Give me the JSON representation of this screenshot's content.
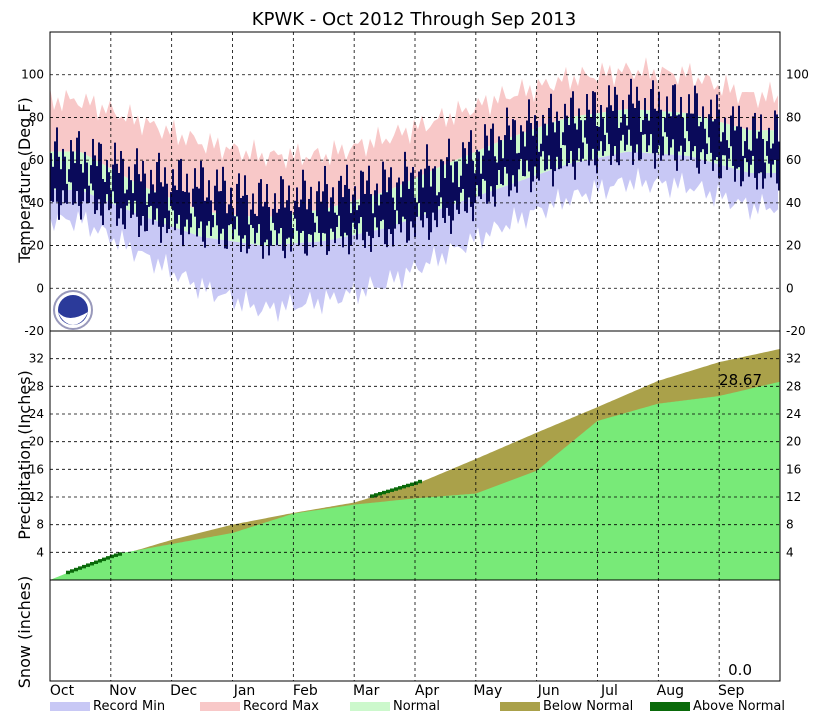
{
  "chart_data": {
    "type": "area",
    "title": "KPWK - Oct 2012 Through Sep 2013",
    "months": [
      "Oct",
      "Nov",
      "Dec",
      "Jan",
      "Feb",
      "Mar",
      "Apr",
      "May",
      "Jun",
      "Jul",
      "Aug",
      "Sep"
    ],
    "colors": {
      "record_min": "#c8c8f5",
      "record_max": "#f8c8c8",
      "normal": "#ccf8cc",
      "observed": "#0a0a5a",
      "below_normal": "#aaa14a",
      "above_normal": "#0a6a0a",
      "precip_actual": "#78ea78"
    },
    "legend": {
      "record_min": "Record Min",
      "record_max": "Record Max",
      "normal": "Normal",
      "below_normal": "Below Normal",
      "above_normal": "Above Normal"
    },
    "panels": {
      "temperature": {
        "ylabel": "Temperature (Deg F)",
        "ylim": [
          -20,
          120
        ],
        "ticks": [
          "100",
          "80",
          "60",
          "40",
          "20",
          "0",
          "-20"
        ],
        "tick_values": [
          100,
          80,
          60,
          40,
          20,
          0,
          -20
        ],
        "record_max_by_month": [
          88,
          78,
          68,
          62,
          62,
          70,
          80,
          90,
          98,
          102,
          100,
          90
        ],
        "normal_high_by_month": [
          64,
          48,
          36,
          33,
          37,
          45,
          58,
          70,
          80,
          84,
          82,
          74
        ],
        "normal_low_by_month": [
          46,
          34,
          24,
          20,
          22,
          28,
          38,
          48,
          58,
          64,
          62,
          54
        ],
        "record_min_by_month": [
          32,
          16,
          0,
          -10,
          -6,
          2,
          16,
          30,
          42,
          50,
          48,
          38
        ],
        "observed_high_by_month": [
          62,
          52,
          48,
          40,
          44,
          48,
          56,
          72,
          80,
          86,
          84,
          72
        ],
        "observed_low_by_month": [
          42,
          32,
          28,
          22,
          24,
          26,
          34,
          50,
          60,
          66,
          64,
          54
        ]
      },
      "precipitation": {
        "ylabel": "Precipitation (Inches)",
        "ylim": [
          0,
          36
        ],
        "ticks": [
          "32",
          "28",
          "24",
          "20",
          "16",
          "12",
          "8",
          "4"
        ],
        "tick_values": [
          32,
          28,
          24,
          20,
          16,
          12,
          8,
          4
        ],
        "normal_cumulative": [
          0,
          3.2,
          5.8,
          8.0,
          9.7,
          11.2,
          13.8,
          17.5,
          21.3,
          25.0,
          28.8,
          31.5,
          33.4
        ],
        "actual_cumulative": [
          0,
          3.6,
          5.2,
          6.8,
          9.6,
          10.9,
          11.8,
          12.5,
          15.8,
          23.0,
          25.5,
          26.6,
          28.67
        ],
        "annotation": "28.67"
      },
      "snow": {
        "ylabel": "Snow (inches)",
        "annotation": "0.0"
      }
    }
  }
}
